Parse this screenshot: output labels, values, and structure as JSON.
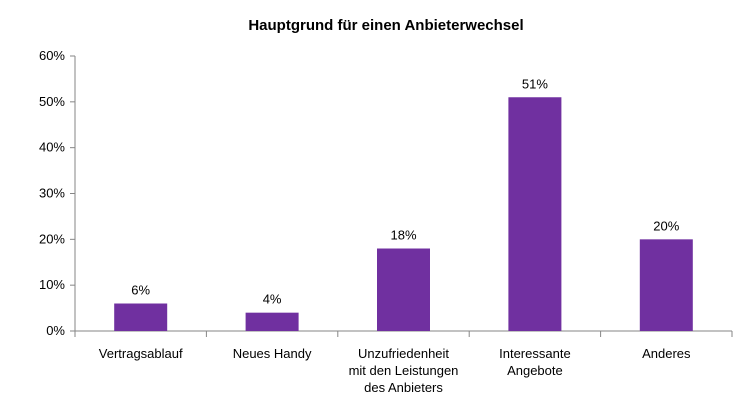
{
  "chart_data": {
    "type": "bar",
    "title": "Hauptgrund für einen Anbieterwechsel",
    "xlabel": "",
    "ylabel": "",
    "ylim": [
      0,
      60
    ],
    "ytick_labels": [
      "0%",
      "10%",
      "20%",
      "30%",
      "40%",
      "50%",
      "60%"
    ],
    "yticks": [
      0,
      10,
      20,
      30,
      40,
      50,
      60
    ],
    "categories": [
      [
        "Vertragsablauf"
      ],
      [
        "Neues Handy"
      ],
      [
        "Unzufriedenheit",
        "mit den Leistungen",
        "des Anbieters"
      ],
      [
        "Interessante",
        "Angebote"
      ],
      [
        "Anderes"
      ]
    ],
    "values": [
      6,
      4,
      18,
      51,
      20
    ],
    "data_labels": [
      "6%",
      "4%",
      "18%",
      "51%",
      "20%"
    ],
    "grid": false,
    "legend": "none",
    "colors": {
      "bar": "#7030A0",
      "axis": "#868686",
      "text": "#000000"
    }
  }
}
